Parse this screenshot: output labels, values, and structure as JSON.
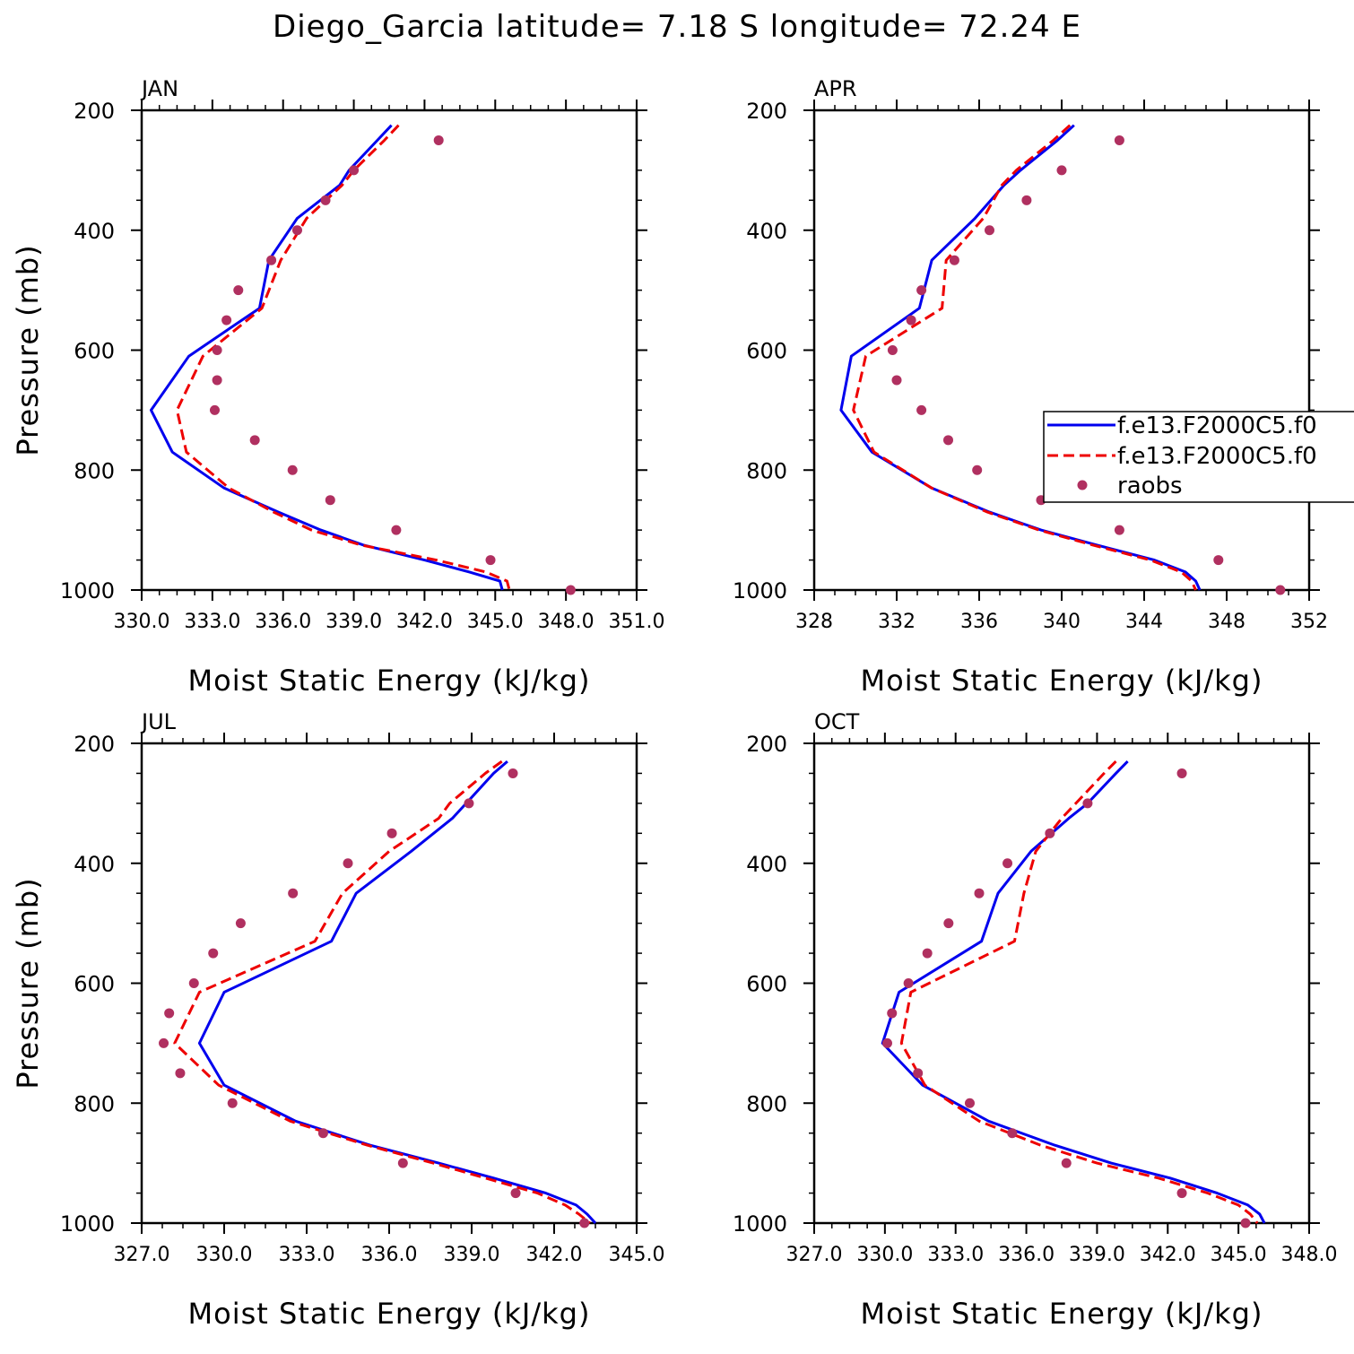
{
  "title": "Diego_Garcia  latitude= 7.18 S longitude= 72.24 E",
  "colors": {
    "model1": "#0000ee",
    "model2": "#ee0000",
    "raobs": "#b03060"
  },
  "legend": {
    "placement": "right",
    "entries": [
      "f.e13.F2000C5.f0",
      "f.e13.F2000C5.f0",
      "raobs"
    ]
  },
  "chart_data": [
    {
      "type": "line",
      "panel_label": "JAN",
      "xlabel": "Moist Static Energy (kJ/kg)",
      "ylabel": "Pressure (mb)",
      "xlim": [
        330,
        351
      ],
      "xticks": [
        330,
        333,
        336,
        339,
        342,
        345,
        348,
        351
      ],
      "xtick_labels": [
        "330.0",
        "333.0",
        "336.0",
        "339.0",
        "342.0",
        "345.0",
        "348.0",
        "351.0"
      ],
      "ylim": [
        1000,
        200
      ],
      "yticks": [
        200,
        400,
        600,
        800,
        1000
      ],
      "ytick_labels": [
        "200",
        "400",
        "600",
        "800",
        "1000"
      ],
      "series": [
        {
          "style": "solid",
          "p": [
            225,
            250,
            300,
            325,
            380,
            450,
            530,
            610,
            700,
            770,
            830,
            870,
            900,
            925,
            950,
            970,
            985,
            1000
          ],
          "mse": [
            340.6,
            340.0,
            338.8,
            338.4,
            336.6,
            335.4,
            335.0,
            332.0,
            330.4,
            331.3,
            333.5,
            335.8,
            337.6,
            339.4,
            342.0,
            343.9,
            345.2,
            345.3
          ]
        },
        {
          "style": "dashed",
          "p": [
            225,
            250,
            300,
            325,
            380,
            450,
            530,
            610,
            700,
            770,
            830,
            870,
            900,
            925,
            950,
            970,
            985,
            1000
          ],
          "mse": [
            340.9,
            340.3,
            339.0,
            338.5,
            337.0,
            335.9,
            335.1,
            332.6,
            331.5,
            331.9,
            333.7,
            335.6,
            337.2,
            339.3,
            342.5,
            344.6,
            345.5,
            345.6
          ]
        },
        {
          "style": "dots",
          "p": [
            250,
            300,
            350,
            400,
            450,
            500,
            550,
            600,
            650,
            700,
            750,
            800,
            850,
            900,
            950,
            1000
          ],
          "mse": [
            342.6,
            339.0,
            337.8,
            336.6,
            335.5,
            334.1,
            333.6,
            333.2,
            333.2,
            333.1,
            334.8,
            336.4,
            338.0,
            340.8,
            344.8,
            348.2
          ]
        }
      ]
    },
    {
      "type": "line",
      "panel_label": "APR",
      "xlabel": "Moist Static Energy (kJ/kg)",
      "ylabel": "",
      "xlim": [
        328,
        352
      ],
      "xticks": [
        328,
        332,
        336,
        340,
        344,
        348,
        352
      ],
      "xtick_labels": [
        "328",
        "332",
        "336",
        "340",
        "344",
        "348",
        "352"
      ],
      "ylim": [
        1000,
        200
      ],
      "yticks": [
        200,
        400,
        600,
        800,
        1000
      ],
      "ytick_labels": [
        "200",
        "400",
        "600",
        "800",
        "1000"
      ],
      "series": [
        {
          "style": "solid",
          "p": [
            225,
            250,
            300,
            325,
            380,
            450,
            530,
            610,
            700,
            770,
            830,
            870,
            900,
            925,
            950,
            970,
            985,
            1000
          ],
          "mse": [
            340.6,
            339.8,
            338.0,
            337.2,
            335.8,
            333.7,
            333.1,
            329.8,
            329.3,
            330.8,
            333.7,
            336.5,
            339.0,
            341.7,
            344.5,
            346.0,
            346.5,
            346.7
          ]
        },
        {
          "style": "dashed",
          "p": [
            225,
            250,
            300,
            325,
            380,
            450,
            530,
            610,
            700,
            770,
            830,
            870,
            900,
            925,
            950,
            970,
            985,
            1000
          ],
          "mse": [
            340.4,
            339.6,
            337.8,
            337.1,
            336.2,
            334.4,
            334.2,
            330.5,
            329.9,
            330.9,
            333.7,
            336.4,
            338.9,
            341.5,
            344.3,
            345.8,
            346.3,
            346.5
          ]
        },
        {
          "style": "dots",
          "p": [
            250,
            300,
            350,
            400,
            450,
            500,
            550,
            600,
            650,
            700,
            750,
            800,
            850,
            900,
            950,
            1000
          ],
          "mse": [
            342.8,
            340.0,
            338.3,
            336.5,
            334.8,
            333.2,
            332.7,
            331.8,
            332.0,
            333.2,
            334.5,
            335.9,
            339.0,
            342.8,
            347.6,
            350.6
          ]
        }
      ]
    },
    {
      "type": "line",
      "panel_label": "JUL",
      "xlabel": "Moist Static Energy (kJ/kg)",
      "ylabel": "Pressure (mb)",
      "xlim": [
        327,
        345
      ],
      "xticks": [
        327,
        330,
        333,
        336,
        339,
        342,
        345
      ],
      "xtick_labels": [
        "327.0",
        "330.0",
        "333.0",
        "336.0",
        "339.0",
        "342.0",
        "345.0"
      ],
      "ylim": [
        1000,
        200
      ],
      "yticks": [
        200,
        400,
        600,
        800,
        1000
      ],
      "ytick_labels": [
        "200",
        "400",
        "600",
        "800",
        "1000"
      ],
      "series": [
        {
          "style": "solid",
          "p": [
            230,
            250,
            300,
            325,
            380,
            450,
            530,
            615,
            700,
            770,
            830,
            870,
            900,
            925,
            950,
            970,
            985,
            1000
          ],
          "mse": [
            340.3,
            339.8,
            338.8,
            338.3,
            336.8,
            334.8,
            333.9,
            330.0,
            329.1,
            330.0,
            332.6,
            335.3,
            337.8,
            339.8,
            341.7,
            342.8,
            343.2,
            343.5
          ]
        },
        {
          "style": "dashed",
          "p": [
            230,
            250,
            300,
            325,
            380,
            450,
            530,
            615,
            700,
            770,
            830,
            870,
            900,
            925,
            950,
            970,
            985,
            1000
          ],
          "mse": [
            340.1,
            339.5,
            338.2,
            337.8,
            336.0,
            334.3,
            333.3,
            329.1,
            328.2,
            329.8,
            332.4,
            335.2,
            337.6,
            339.5,
            341.4,
            342.4,
            342.9,
            343.3
          ]
        },
        {
          "style": "dots",
          "p": [
            250,
            300,
            350,
            400,
            450,
            500,
            550,
            600,
            650,
            700,
            750,
            800,
            850,
            900,
            950,
            1000
          ],
          "mse": [
            340.5,
            338.9,
            336.1,
            334.5,
            332.5,
            330.6,
            329.6,
            328.9,
            328.0,
            327.8,
            328.4,
            330.3,
            333.6,
            336.5,
            340.6,
            343.1
          ]
        }
      ]
    },
    {
      "type": "line",
      "panel_label": "OCT",
      "xlabel": "Moist Static Energy (kJ/kg)",
      "ylabel": "",
      "xlim": [
        327,
        348
      ],
      "xticks": [
        327,
        330,
        333,
        336,
        339,
        342,
        345,
        348
      ],
      "xtick_labels": [
        "327.0",
        "330.0",
        "333.0",
        "336.0",
        "339.0",
        "342.0",
        "345.0",
        "348.0"
      ],
      "ylim": [
        1000,
        200
      ],
      "yticks": [
        200,
        400,
        600,
        800,
        1000
      ],
      "ytick_labels": [
        "200",
        "400",
        "600",
        "800",
        "1000"
      ],
      "series": [
        {
          "style": "solid",
          "p": [
            230,
            250,
            300,
            325,
            380,
            450,
            530,
            615,
            700,
            770,
            830,
            870,
            900,
            925,
            950,
            970,
            985,
            1000
          ],
          "mse": [
            340.3,
            339.8,
            338.6,
            337.8,
            336.2,
            334.8,
            334.1,
            330.6,
            329.9,
            331.6,
            334.4,
            337.2,
            339.6,
            342.1,
            344.1,
            345.4,
            345.9,
            346.1
          ]
        },
        {
          "style": "dashed",
          "p": [
            230,
            250,
            300,
            325,
            380,
            450,
            530,
            615,
            700,
            770,
            830,
            870,
            900,
            925,
            950,
            970,
            985,
            1000
          ],
          "mse": [
            339.8,
            339.3,
            338.1,
            337.5,
            336.4,
            335.9,
            335.5,
            331.1,
            330.7,
            331.7,
            334.0,
            336.6,
            339.0,
            341.6,
            343.7,
            345.0,
            345.5,
            345.8
          ]
        },
        {
          "style": "dots",
          "p": [
            250,
            300,
            350,
            400,
            450,
            500,
            550,
            600,
            650,
            700,
            750,
            800,
            850,
            900,
            950,
            1000
          ],
          "mse": [
            342.6,
            338.6,
            337.0,
            335.2,
            334.0,
            332.7,
            331.8,
            331.0,
            330.3,
            330.1,
            331.4,
            333.6,
            335.4,
            337.7,
            342.6,
            345.3
          ]
        }
      ]
    }
  ]
}
